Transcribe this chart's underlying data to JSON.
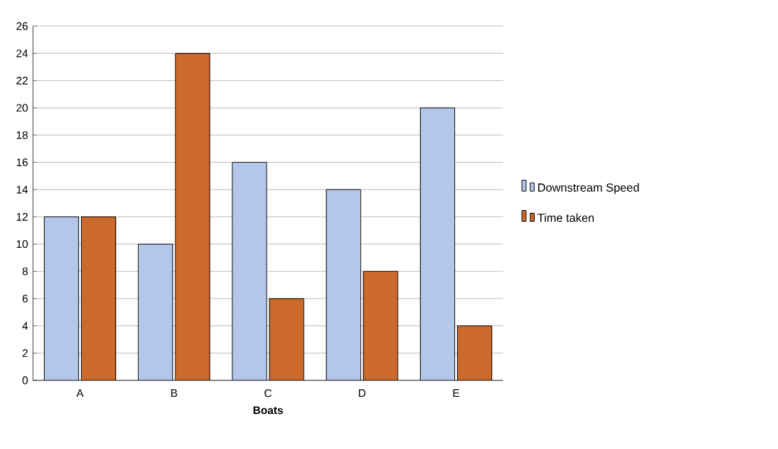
{
  "chart_data": {
    "type": "bar",
    "xlabel": "Boats",
    "categories": [
      "A",
      "B",
      "C",
      "D",
      "E"
    ],
    "series": [
      {
        "name": "Downstream Speed",
        "color": "#b4c6ea",
        "values": [
          12,
          10,
          16,
          14,
          20
        ]
      },
      {
        "name": "Time taken",
        "color": "#cc6a2c",
        "values": [
          12,
          24,
          6,
          8,
          4
        ]
      }
    ],
    "ylim": [
      0,
      26
    ],
    "yticks": [
      0,
      2,
      4,
      6,
      8,
      10,
      12,
      14,
      16,
      18,
      20,
      22,
      24,
      26
    ],
    "grid": "y",
    "legend": "right"
  }
}
